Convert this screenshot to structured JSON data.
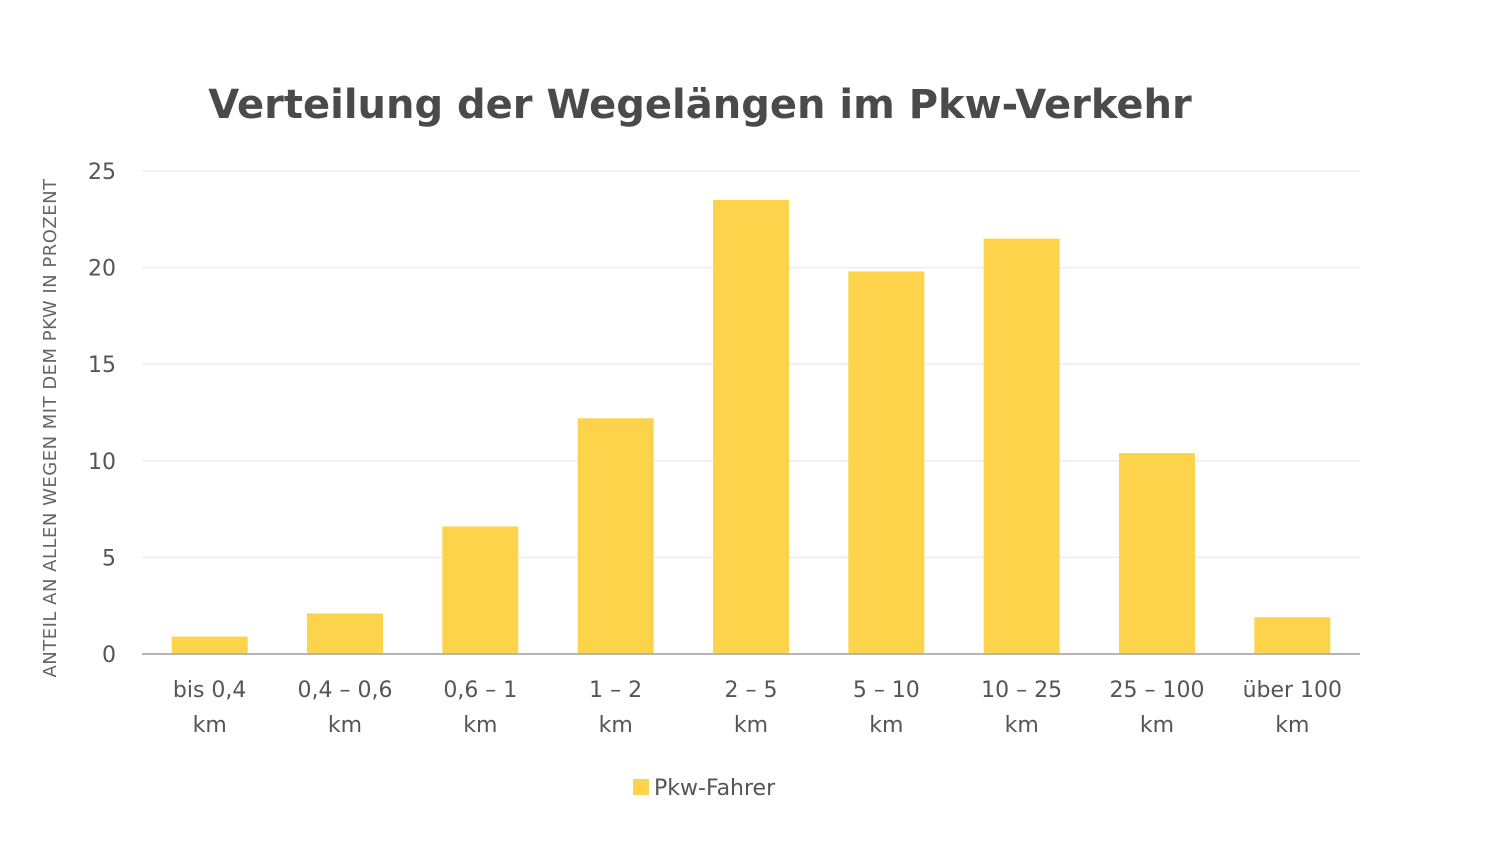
{
  "chart_data": {
    "type": "bar",
    "title": "Verteilung der Wegelängen im Pkw-Verkehr",
    "ylabel": "ANTEIL AN ALLEN WEGEN MIT DEM PKW IN PROZENT",
    "xlabel": "",
    "ylim": [
      0,
      25
    ],
    "yticks": [
      0,
      5,
      10,
      15,
      20,
      25
    ],
    "grid": true,
    "legend_position": "bottom",
    "categories": [
      [
        "bis 0,4",
        "km"
      ],
      [
        "0,4 – 0,6",
        "km"
      ],
      [
        "0,6 – 1",
        "km"
      ],
      [
        "1 – 2",
        "km"
      ],
      [
        "2 – 5",
        "km"
      ],
      [
        "5 – 10",
        "km"
      ],
      [
        "10 – 25",
        "km"
      ],
      [
        "25 – 100",
        "km"
      ],
      [
        "über 100",
        "km"
      ]
    ],
    "series": [
      {
        "name": "Pkw-Fahrer",
        "color": "#fcd34a",
        "values": [
          0.9,
          2.1,
          6.6,
          12.2,
          23.5,
          19.8,
          21.5,
          10.4,
          1.9
        ]
      }
    ]
  }
}
